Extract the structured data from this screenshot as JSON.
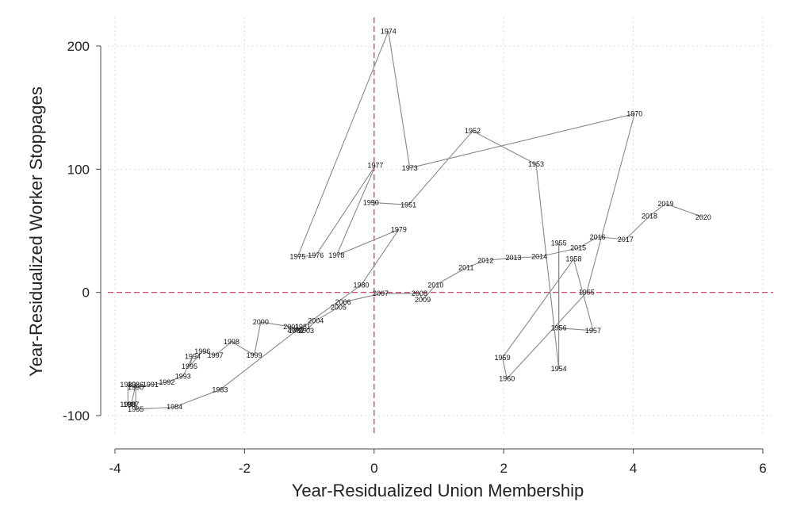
{
  "chart_data": {
    "type": "line",
    "title": "",
    "xlabel": "Year-Residualized Union Membership",
    "ylabel": "Year-Residualized Worker Stoppages",
    "xlim": [
      -4,
      6
    ],
    "ylim": [
      -100,
      200
    ],
    "xticks": [
      "-4",
      "-2",
      "0",
      "2",
      "4",
      "6"
    ],
    "yticks": [
      "-100",
      "0",
      "100",
      "200"
    ],
    "grid": true,
    "reference_lines": {
      "x": 0,
      "y": 0,
      "style": "dashed",
      "color": "#c0306a"
    },
    "line_color": "#888888",
    "series": [
      {
        "points": [
          {
            "label": "1950",
            "x": -0.05,
            "y": 73
          },
          {
            "label": "1951",
            "x": 0.53,
            "y": 71
          },
          {
            "label": "1952",
            "x": 1.52,
            "y": 131
          },
          {
            "label": "1953",
            "x": 2.5,
            "y": 104
          },
          {
            "label": "1954",
            "x": 2.85,
            "y": -62
          },
          {
            "label": "1955",
            "x": 2.85,
            "y": 40
          },
          {
            "label": "1956",
            "x": 2.85,
            "y": -29
          },
          {
            "label": "1957",
            "x": 3.38,
            "y": -31
          },
          {
            "label": "1958",
            "x": 3.08,
            "y": 27
          },
          {
            "label": "1959",
            "x": 1.98,
            "y": -53
          },
          {
            "label": "1960",
            "x": 2.05,
            "y": -70
          },
          {
            "label": "1965",
            "x": 3.28,
            "y": 0
          },
          {
            "label": "1970",
            "x": 4.02,
            "y": 145
          },
          {
            "label": "1973",
            "x": 0.55,
            "y": 101
          },
          {
            "label": "1974",
            "x": 0.22,
            "y": 212
          },
          {
            "label": "1975",
            "x": -1.18,
            "y": 29
          },
          {
            "label": "1976",
            "x": -0.9,
            "y": 30
          },
          {
            "label": "1977",
            "x": 0.02,
            "y": 103
          },
          {
            "label": "1978",
            "x": -0.58,
            "y": 30
          },
          {
            "label": "1979",
            "x": 0.38,
            "y": 51
          },
          {
            "label": "1980",
            "x": -0.2,
            "y": 6
          },
          {
            "label": "1981",
            "x": -1.1,
            "y": -28
          },
          {
            "label": "1982",
            "x": -1.2,
            "y": -31
          },
          {
            "label": "1983",
            "x": -2.38,
            "y": -79
          },
          {
            "label": "1984",
            "x": -3.08,
            "y": -93
          },
          {
            "label": "1985",
            "x": -3.68,
            "y": -95
          },
          {
            "label": "1986",
            "x": -3.68,
            "y": -75
          },
          {
            "label": "1987",
            "x": -3.75,
            "y": -91
          },
          {
            "label": "1988",
            "x": -3.8,
            "y": -91
          },
          {
            "label": "1989",
            "x": -3.8,
            "y": -75
          },
          {
            "label": "1990",
            "x": -3.68,
            "y": -77
          },
          {
            "label": "1991",
            "x": -3.45,
            "y": -75
          },
          {
            "label": "1992",
            "x": -3.2,
            "y": -73
          },
          {
            "label": "1993",
            "x": -2.95,
            "y": -68
          },
          {
            "label": "1994",
            "x": -2.8,
            "y": -52
          },
          {
            "label": "1995",
            "x": -2.85,
            "y": -60
          },
          {
            "label": "1996",
            "x": -2.65,
            "y": -48
          },
          {
            "label": "1997",
            "x": -2.45,
            "y": -51
          },
          {
            "label": "1998",
            "x": -2.2,
            "y": -40
          },
          {
            "label": "1999",
            "x": -1.85,
            "y": -51
          },
          {
            "label": "2000",
            "x": -1.75,
            "y": -24
          },
          {
            "label": "2001",
            "x": -1.28,
            "y": -28
          },
          {
            "label": "2002",
            "x": -1.22,
            "y": -30
          },
          {
            "label": "2003",
            "x": -1.05,
            "y": -31
          },
          {
            "label": "2004",
            "x": -0.9,
            "y": -23
          },
          {
            "label": "2005",
            "x": -0.55,
            "y": -12
          },
          {
            "label": "2006",
            "x": -0.48,
            "y": -8
          },
          {
            "label": "2007",
            "x": 0.1,
            "y": -1
          },
          {
            "label": "2008",
            "x": 0.7,
            "y": -1
          },
          {
            "label": "2009",
            "x": 0.75,
            "y": -6
          },
          {
            "label": "2010",
            "x": 0.95,
            "y": 6
          },
          {
            "label": "2011",
            "x": 1.42,
            "y": 20
          },
          {
            "label": "2012",
            "x": 1.72,
            "y": 26
          },
          {
            "label": "2013",
            "x": 2.15,
            "y": 28
          },
          {
            "label": "2014",
            "x": 2.55,
            "y": 29
          },
          {
            "label": "2015",
            "x": 3.15,
            "y": 36
          },
          {
            "label": "2016",
            "x": 3.45,
            "y": 45
          },
          {
            "label": "2017",
            "x": 3.88,
            "y": 43
          },
          {
            "label": "2018",
            "x": 4.25,
            "y": 62
          },
          {
            "label": "2019",
            "x": 4.5,
            "y": 72
          },
          {
            "label": "2020",
            "x": 5.08,
            "y": 61
          }
        ]
      }
    ]
  }
}
